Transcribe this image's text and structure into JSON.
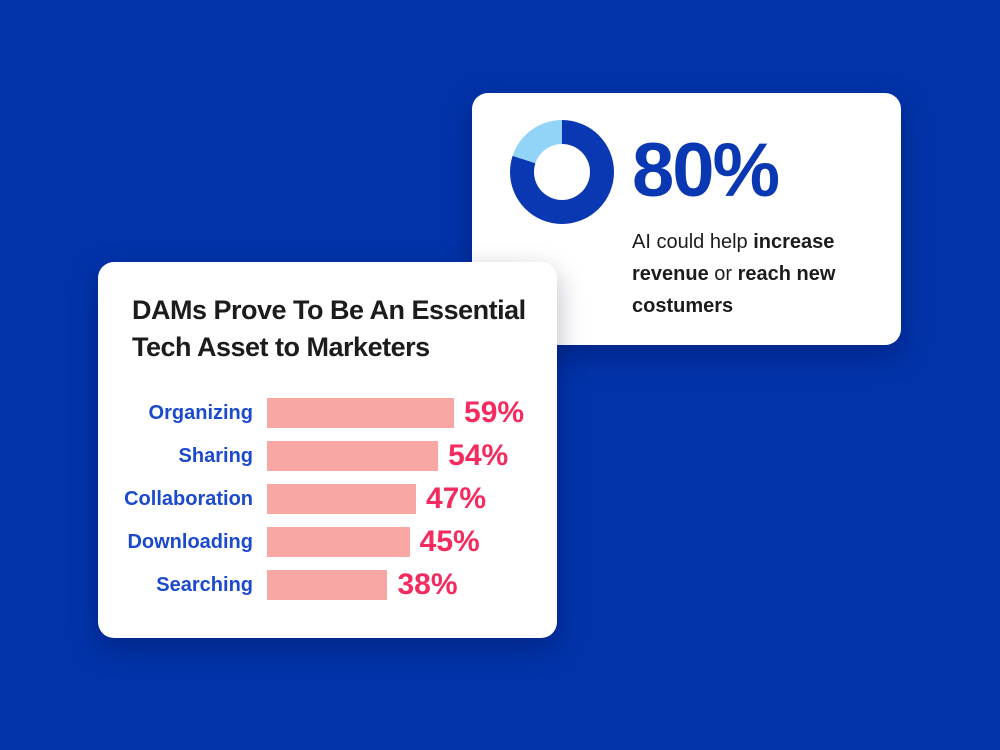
{
  "colors": {
    "background": "#0233a9",
    "card": "#ffffff",
    "brand_blue": "#0a38b2",
    "light_blue": "#92d4f7",
    "category_blue": "#1c4ace",
    "bar_pink": "#f9a7a4",
    "value_pink": "#f42b5f",
    "ink": "#1c1c1e"
  },
  "cards": {
    "ai_stat": {
      "percent_label": "80%",
      "description_text": "AI could help increase revenue or reach new costumers",
      "description_lines": [
        [
          {
            "t": "AI could help ",
            "b": false
          },
          {
            "t": "increase",
            "b": true
          }
        ],
        [
          {
            "t": "revenue",
            "b": true
          },
          {
            "t": " or ",
            "b": false
          },
          {
            "t": "reach new",
            "b": true
          }
        ],
        [
          {
            "t": "costumers",
            "b": true
          }
        ]
      ]
    },
    "dam_chart": {
      "title": "DAMs Prove To Be An Essential Tech Asset to Marketers",
      "title_lines": [
        "DAMs Prove To Be An Essential",
        "Tech Asset to Marketers"
      ]
    }
  },
  "chart_data": [
    {
      "type": "pie",
      "variant": "donut",
      "title": "80%",
      "annotation": "AI could help increase revenue or reach new costumers",
      "slices": [
        {
          "label": "AI could help increase revenue or reach new costumers",
          "value": 80,
          "color": "#0a38b2"
        },
        {
          "label": "remainder",
          "value": 20,
          "color": "#92d4f7"
        }
      ],
      "start_angle_deg": 0,
      "direction": "clockwise",
      "legend": false
    },
    {
      "type": "bar",
      "orientation": "horizontal",
      "title": "DAMs Prove To Be An Essential Tech Asset to Marketers",
      "categories": [
        "Organizing",
        "Sharing",
        "Collaboration",
        "Downloading",
        "Searching"
      ],
      "values": [
        59,
        54,
        47,
        45,
        38
      ],
      "value_labels": [
        "59%",
        "54%",
        "47%",
        "45%",
        "38%"
      ],
      "xlim": [
        0,
        100
      ],
      "grid": false,
      "legend": false
    }
  ]
}
